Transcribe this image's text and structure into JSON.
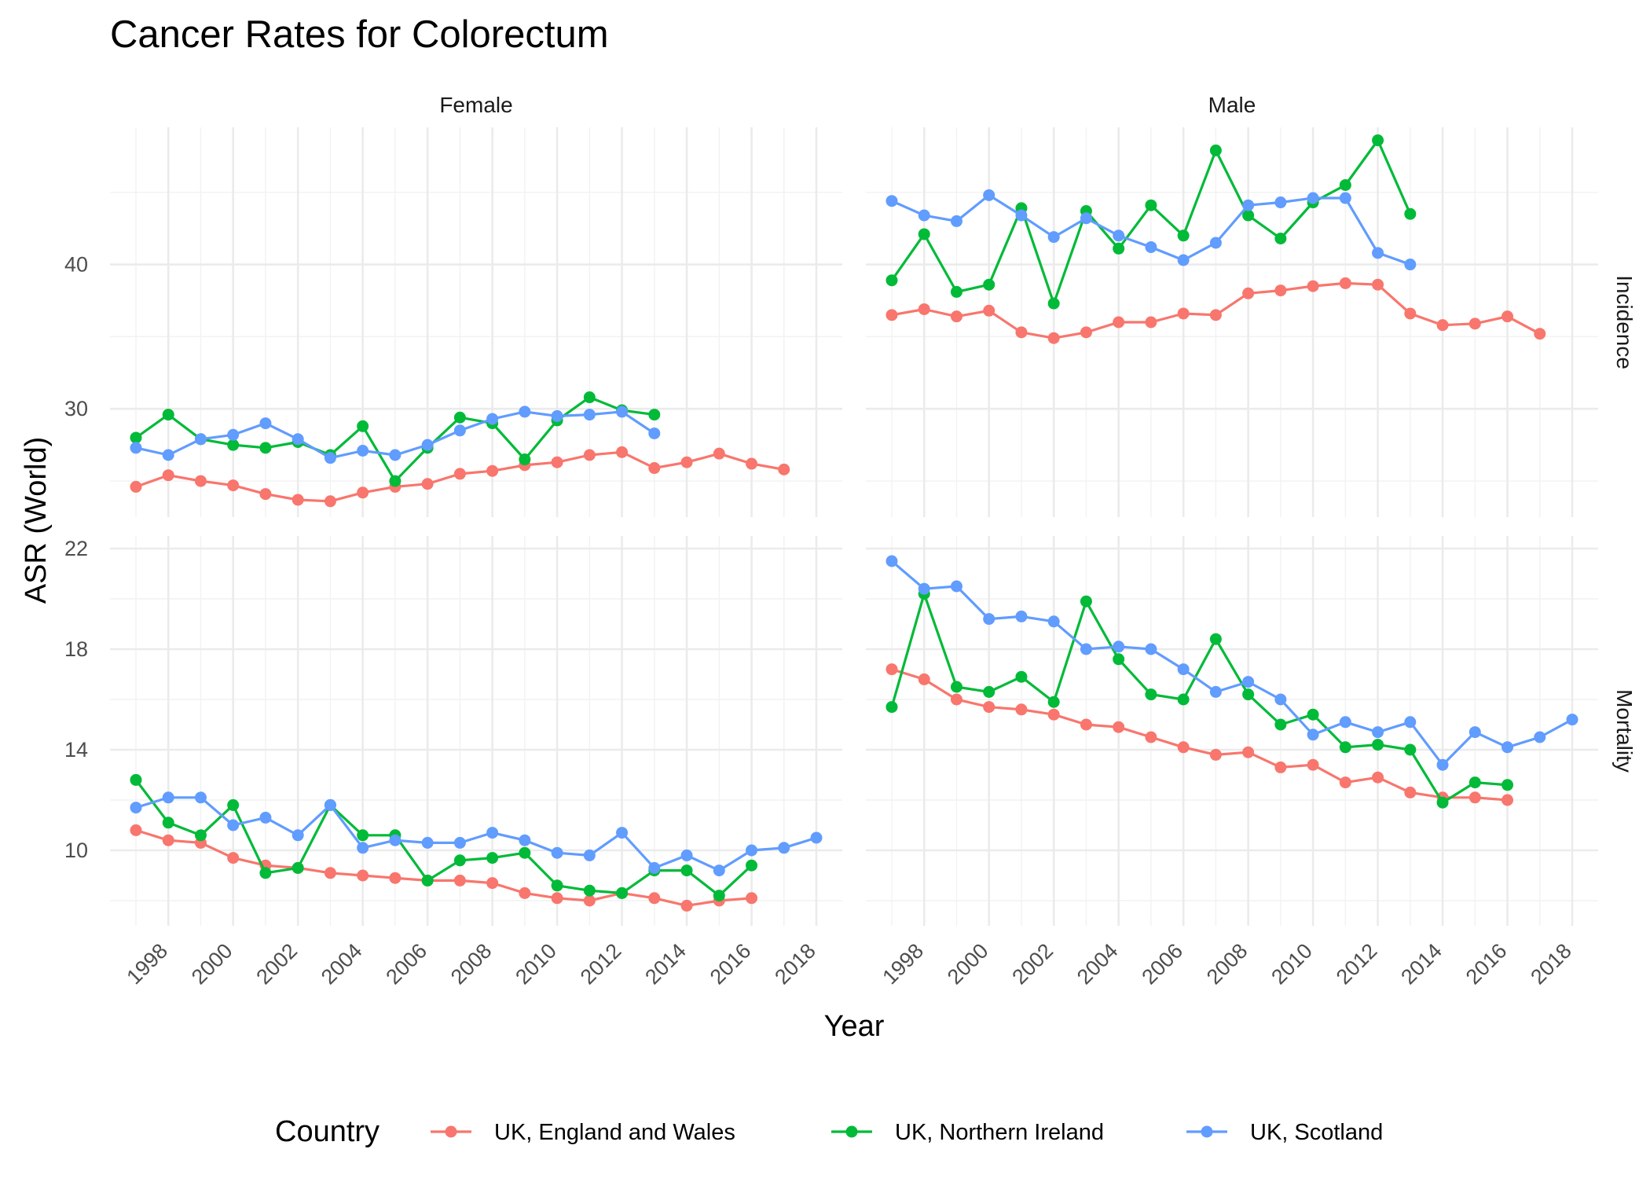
{
  "chart_data": {
    "type": "line",
    "title": "Cancer Rates for Colorectum",
    "xlabel": "Year",
    "ylabel": "ASR (World)",
    "x_ticks": [
      1998,
      2000,
      2002,
      2004,
      2006,
      2008,
      2010,
      2012,
      2014,
      2016,
      2018
    ],
    "xlim": [
      1996.2,
      2018.8
    ],
    "col_facets": [
      "Female",
      "Male"
    ],
    "row_facets": [
      {
        "name": "Incidence",
        "ylim": [
          22.5,
          49.5
        ],
        "y_ticks": [
          30,
          40
        ]
      },
      {
        "name": "Mortality",
        "ylim": [
          7.0,
          22.5
        ],
        "y_ticks": [
          10,
          14,
          18,
          22
        ]
      }
    ],
    "legend": {
      "title": "Country",
      "position": "bottom"
    },
    "grid": true,
    "series": [
      {
        "name": "UK, England and Wales",
        "color": "#F8766D"
      },
      {
        "name": "UK, Northern Ireland",
        "color": "#00BA38"
      },
      {
        "name": "UK, Scotland",
        "color": "#619CFF"
      }
    ],
    "panels": [
      {
        "row": "Incidence",
        "col": "Female",
        "series": [
          {
            "name": "UK, England and Wales",
            "x": [
              1997,
              1998,
              1999,
              2000,
              2001,
              2002,
              2003,
              2004,
              2005,
              2006,
              2007,
              2008,
              2009,
              2010,
              2011,
              2012,
              2013,
              2014,
              2015,
              2016,
              2017
            ],
            "values": [
              24.6,
              25.4,
              25.0,
              24.7,
              24.1,
              23.7,
              23.6,
              24.2,
              24.6,
              24.8,
              25.5,
              25.7,
              26.1,
              26.3,
              26.8,
              27.0,
              25.9,
              26.3,
              26.9,
              26.2,
              25.8
            ]
          },
          {
            "name": "UK, Northern Ireland",
            "x": [
              1997,
              1998,
              1999,
              2000,
              2001,
              2002,
              2003,
              2004,
              2005,
              2006,
              2007,
              2008,
              2009,
              2010,
              2011,
              2012,
              2013
            ],
            "values": [
              28.0,
              29.6,
              27.9,
              27.5,
              27.3,
              27.7,
              26.8,
              28.8,
              25.0,
              27.3,
              29.4,
              29.0,
              26.5,
              29.2,
              30.8,
              29.9,
              29.6
            ]
          },
          {
            "name": "UK, Scotland",
            "x": [
              1997,
              1998,
              1999,
              2000,
              2001,
              2002,
              2003,
              2004,
              2005,
              2006,
              2007,
              2008,
              2009,
              2010,
              2011,
              2012,
              2013
            ],
            "values": [
              27.3,
              26.8,
              27.9,
              28.2,
              29.0,
              27.9,
              26.6,
              27.1,
              26.8,
              27.5,
              28.5,
              29.3,
              29.8,
              29.5,
              29.6,
              29.8,
              28.3
            ]
          }
        ]
      },
      {
        "row": "Incidence",
        "col": "Male",
        "series": [
          {
            "name": "UK, England and Wales",
            "x": [
              1997,
              1998,
              1999,
              2000,
              2001,
              2002,
              2003,
              2004,
              2005,
              2006,
              2007,
              2008,
              2009,
              2010,
              2011,
              2012,
              2013,
              2014,
              2015,
              2016,
              2017
            ],
            "values": [
              36.5,
              36.9,
              36.4,
              36.8,
              35.3,
              34.9,
              35.3,
              36.0,
              36.0,
              36.6,
              36.5,
              38.0,
              38.2,
              38.5,
              38.7,
              38.6,
              36.6,
              35.8,
              35.9,
              36.4,
              35.2
            ]
          },
          {
            "name": "UK, Northern Ireland",
            "x": [
              1997,
              1998,
              1999,
              2000,
              2001,
              2002,
              2003,
              2004,
              2005,
              2006,
              2007,
              2008,
              2009,
              2010,
              2011,
              2012,
              2013
            ],
            "values": [
              38.9,
              42.1,
              38.1,
              38.6,
              43.9,
              37.3,
              43.7,
              41.1,
              44.1,
              42.0,
              47.9,
              43.4,
              41.8,
              44.3,
              45.5,
              48.6,
              43.5
            ]
          },
          {
            "name": "UK, Scotland",
            "x": [
              1997,
              1998,
              1999,
              2000,
              2001,
              2002,
              2003,
              2004,
              2005,
              2006,
              2007,
              2008,
              2009,
              2010,
              2011,
              2012,
              2013
            ],
            "values": [
              44.4,
              43.4,
              43.0,
              44.8,
              43.4,
              41.9,
              43.2,
              42.0,
              41.2,
              40.3,
              41.5,
              44.1,
              44.3,
              44.6,
              44.6,
              40.8,
              40.0
            ]
          }
        ]
      },
      {
        "row": "Mortality",
        "col": "Female",
        "series": [
          {
            "name": "UK, England and Wales",
            "x": [
              1997,
              1998,
              1999,
              2000,
              2001,
              2002,
              2003,
              2004,
              2005,
              2006,
              2007,
              2008,
              2009,
              2010,
              2011,
              2012,
              2013,
              2014,
              2015,
              2016
            ],
            "values": [
              10.8,
              10.4,
              10.3,
              9.7,
              9.4,
              9.3,
              9.1,
              9.0,
              8.9,
              8.8,
              8.8,
              8.7,
              8.3,
              8.1,
              8.0,
              8.3,
              8.1,
              7.8,
              8.0,
              8.1
            ]
          },
          {
            "name": "UK, Northern Ireland",
            "x": [
              1997,
              1998,
              1999,
              2000,
              2001,
              2002,
              2003,
              2004,
              2005,
              2006,
              2007,
              2008,
              2009,
              2010,
              2011,
              2012,
              2013,
              2014,
              2015,
              2016
            ],
            "values": [
              12.8,
              11.1,
              10.6,
              11.8,
              9.1,
              9.3,
              11.8,
              10.6,
              10.6,
              8.8,
              9.6,
              9.7,
              9.9,
              8.6,
              8.4,
              8.3,
              9.2,
              9.2,
              8.2,
              9.4
            ]
          },
          {
            "name": "UK, Scotland",
            "x": [
              1997,
              1998,
              1999,
              2000,
              2001,
              2002,
              2003,
              2004,
              2005,
              2006,
              2007,
              2008,
              2009,
              2010,
              2011,
              2012,
              2013,
              2014,
              2015,
              2016,
              2017,
              2018
            ],
            "values": [
              11.7,
              12.1,
              12.1,
              11.0,
              11.3,
              10.6,
              11.8,
              10.1,
              10.4,
              10.3,
              10.3,
              10.7,
              10.4,
              9.9,
              9.8,
              10.7,
              9.3,
              9.8,
              9.2,
              10.0,
              10.1,
              10.5
            ]
          }
        ]
      },
      {
        "row": "Mortality",
        "col": "Male",
        "series": [
          {
            "name": "UK, England and Wales",
            "x": [
              1997,
              1998,
              1999,
              2000,
              2001,
              2002,
              2003,
              2004,
              2005,
              2006,
              2007,
              2008,
              2009,
              2010,
              2011,
              2012,
              2013,
              2014,
              2015,
              2016
            ],
            "values": [
              17.2,
              16.8,
              16.0,
              15.7,
              15.6,
              15.4,
              15.0,
              14.9,
              14.5,
              14.1,
              13.8,
              13.9,
              13.3,
              13.4,
              12.7,
              12.9,
              12.3,
              12.1,
              12.1,
              12.0
            ]
          },
          {
            "name": "UK, Northern Ireland",
            "x": [
              1997,
              1998,
              1999,
              2000,
              2001,
              2002,
              2003,
              2004,
              2005,
              2006,
              2007,
              2008,
              2009,
              2010,
              2011,
              2012,
              2013,
              2014,
              2015,
              2016
            ],
            "values": [
              15.7,
              20.2,
              16.5,
              16.3,
              16.9,
              15.9,
              19.9,
              17.6,
              16.2,
              16.0,
              18.4,
              16.2,
              15.0,
              15.4,
              14.1,
              14.2,
              14.0,
              11.9,
              12.7,
              12.6
            ]
          },
          {
            "name": "UK, Scotland",
            "x": [
              1997,
              1998,
              1999,
              2000,
              2001,
              2002,
              2003,
              2004,
              2005,
              2006,
              2007,
              2008,
              2009,
              2010,
              2011,
              2012,
              2013,
              2014,
              2015,
              2016,
              2017,
              2018
            ],
            "values": [
              21.5,
              20.4,
              20.5,
              19.2,
              19.3,
              19.1,
              18.0,
              18.1,
              18.0,
              17.2,
              16.3,
              16.7,
              16.0,
              14.6,
              15.1,
              14.7,
              15.1,
              13.4,
              14.7,
              14.1,
              14.5,
              15.2
            ]
          }
        ]
      }
    ]
  }
}
